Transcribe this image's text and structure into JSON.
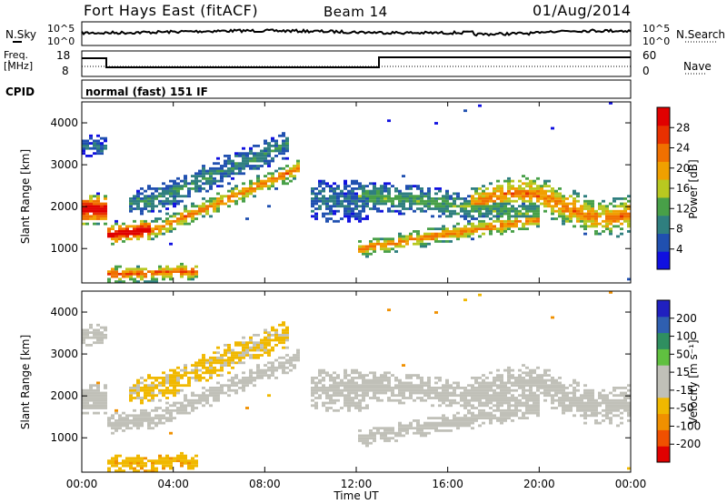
{
  "header": {
    "title": "Fort Hays East (fitACF)",
    "beam": "Beam 14",
    "date": "01/Aug/2014"
  },
  "strip_labels": {
    "nsky": "N.Sky",
    "nsky_hi": "10^5",
    "nsky_lo": "10^0",
    "nsearch": "N.Search",
    "nsearch_hi": "10^5",
    "nsearch_lo": "10^0",
    "freq_line1": "Freq.",
    "freq_line2": "[MHz]",
    "freq_hi": "18",
    "freq_lo": "8",
    "nave": "Nave",
    "nave_hi": "60",
    "nave_lo": "0",
    "cpid": "CPID",
    "cpid_value": "normal (fast) 151 IF"
  },
  "colors": {
    "power": [
      "#1010e0",
      "#2050b0",
      "#2f7f7f",
      "#48a048",
      "#b8c820",
      "#f0a000",
      "#f07000",
      "#e83000",
      "#e00000"
    ],
    "velocity": [
      "#e00000",
      "#f05000",
      "#f09000",
      "#f0b800",
      "#c0c0b8",
      "#c0c0b8",
      "#60c040",
      "#2f8f60",
      "#2f5fb0",
      "#2020c0"
    ]
  },
  "chart_data": [
    {
      "type": "heatmap",
      "panel": "power",
      "ylabel": "Slant Range [km]",
      "yticks": [
        "1000",
        "2000",
        "3000",
        "4000"
      ],
      "ylim": [
        180,
        4500
      ],
      "colorbar_label": "Power [dB]",
      "colorbar_ticks": [
        "4",
        "8",
        "12",
        "16",
        "20",
        "24",
        "28"
      ],
      "colorbar_range": [
        0,
        30
      ]
    },
    {
      "type": "heatmap",
      "panel": "velocity",
      "ylabel": "Slant Range [km]",
      "yticks": [
        "1000",
        "2000",
        "3000",
        "4000"
      ],
      "ylim": [
        180,
        4500
      ],
      "xlabel": "Time UT",
      "xticks": [
        "00:00",
        "04:00",
        "08:00",
        "12:00",
        "16:00",
        "20:00",
        "00:00"
      ],
      "colorbar_label": "Velocity [m s^-1]",
      "colorbar_ticks": [
        "-200",
        "-100",
        "-50",
        "-15",
        "15",
        "50",
        "100",
        "200"
      ],
      "colorbar_range": [
        -250,
        250
      ]
    }
  ]
}
